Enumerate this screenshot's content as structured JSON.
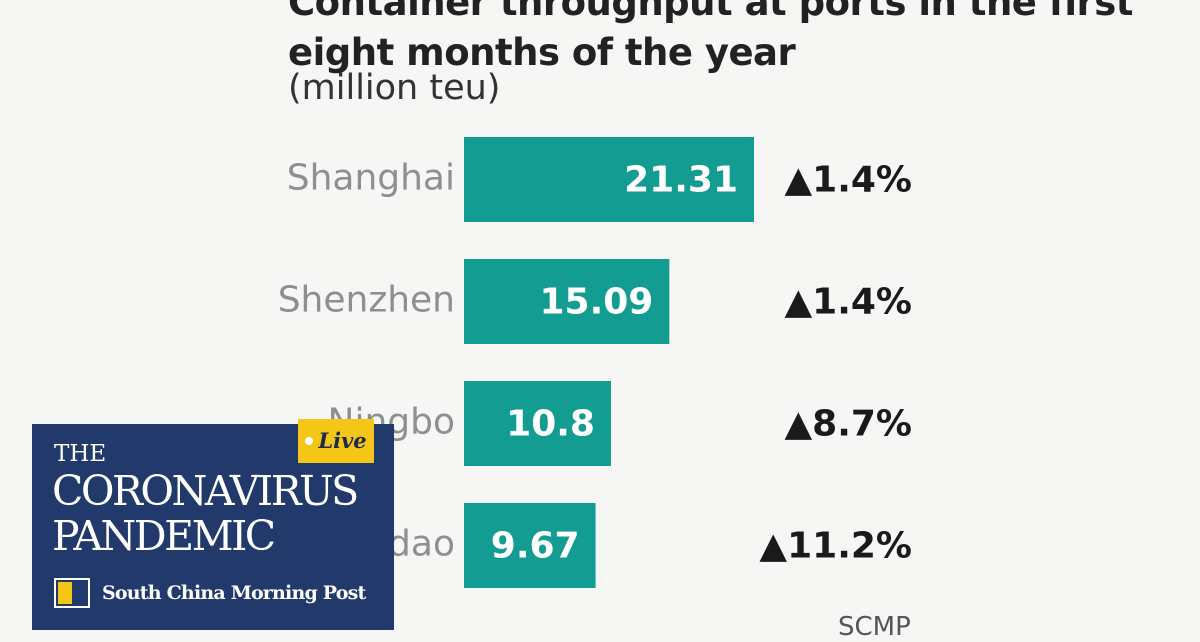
{
  "chart_data": {
    "type": "bar",
    "orientation": "horizontal",
    "title": "Container throughput at ports in the first eight months of the year",
    "unit_label": "(million teu)",
    "categories": [
      "Shanghai",
      "Shenzhen",
      "Ningbo",
      "Qingdao"
    ],
    "values": [
      21.31,
      15.09,
      10.8,
      9.67
    ],
    "value_labels": [
      "21.31",
      "15.09",
      "10.8",
      "9.67"
    ],
    "changes": [
      "▲1.4%",
      "▲1.4%",
      "▲8.7%",
      "▲11.2%"
    ],
    "bar_color": "#139c92",
    "grid": false,
    "legend": "none"
  },
  "credit": "SCMP",
  "badge": {
    "live_label": "Live",
    "overline": "THE",
    "title": "CORONAVIRUS PANDEMIC",
    "brand": "South China Morning Post",
    "colors": {
      "background": "#223a6b",
      "accent": "#f5c518"
    }
  }
}
